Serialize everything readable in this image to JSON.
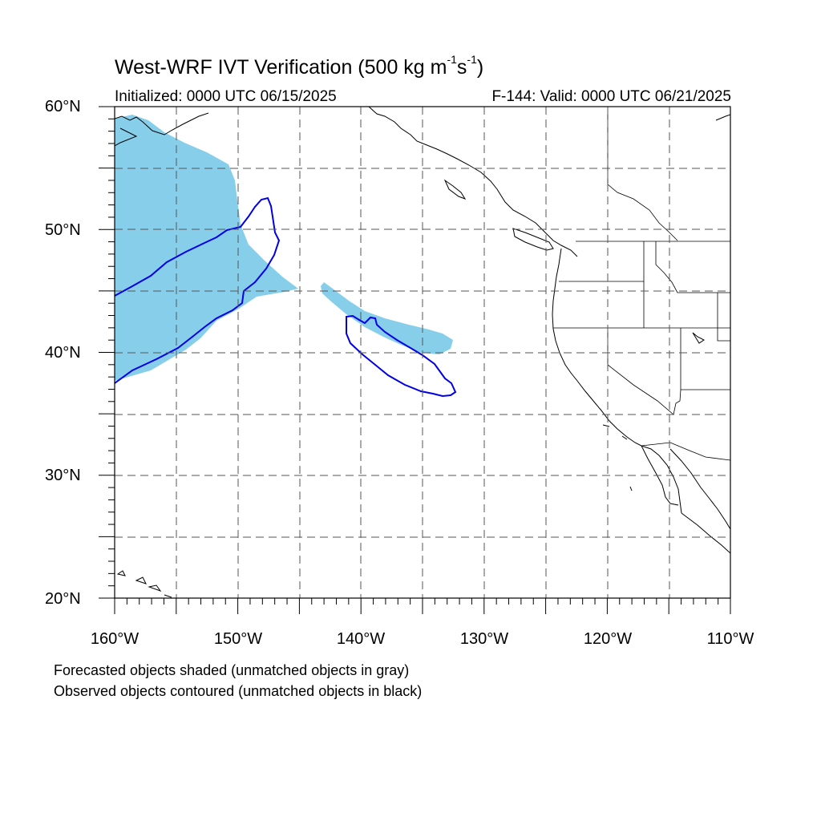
{
  "title": {
    "main": "West-WRF IVT Verification (500 kg m",
    "sup1": "-1",
    "mid": "s",
    "sup2": "-1",
    "end": ")"
  },
  "subtitle": {
    "initialized": "Initialized: 0000 UTC 06/15/2025",
    "valid": "F-144: Valid: 0000 UTC 06/21/2025"
  },
  "lat_labels": [
    "60°N",
    "50°N",
    "40°N",
    "30°N",
    "20°N"
  ],
  "lon_labels": [
    "160°W",
    "150°W",
    "140°W",
    "130°W",
    "120°W",
    "110°W"
  ],
  "notes": [
    "Forecasted objects shaded (unmatched objects in gray)",
    "Observed objects contoured (unmatched objects in black)"
  ],
  "colors": {
    "forecast_fill": "#87ceeb",
    "observed_contour": "#0000e6",
    "coast": "#000000",
    "grid": "#555555"
  }
}
